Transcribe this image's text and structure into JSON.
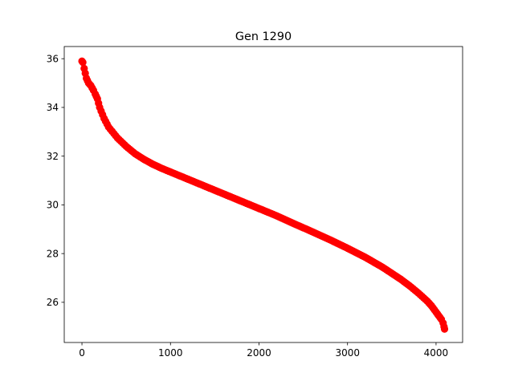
{
  "chart_data": {
    "type": "scatter",
    "title": "Gen 1290",
    "xlabel": "",
    "ylabel": "",
    "xlim": [
      -200,
      4300
    ],
    "ylim": [
      24.35,
      36.5
    ],
    "xticks": [
      0,
      1000,
      2000,
      3000,
      4000
    ],
    "yticks": [
      26,
      28,
      30,
      32,
      34,
      36
    ],
    "xtick_labels": [
      "0",
      "1000",
      "2000",
      "3000",
      "4000"
    ],
    "ytick_labels": [
      "26",
      "28",
      "30",
      "32",
      "34",
      "36"
    ],
    "grid": false,
    "legend": "none",
    "marker_color": "#ff0000",
    "series": [
      {
        "x": [
          0,
          10,
          25,
          50,
          75,
          100,
          130,
          150,
          175,
          200,
          250,
          300,
          400,
          500,
          600,
          700,
          800,
          900,
          1000,
          1200,
          1400,
          1600,
          1800,
          2000,
          2200,
          2400,
          2600,
          2800,
          3000,
          3200,
          3400,
          3600,
          3700,
          3800,
          3900,
          3950,
          4000,
          4030,
          4060,
          4080,
          4090,
          4096
        ],
        "y": [
          35.9,
          35.85,
          35.6,
          35.2,
          35.0,
          34.9,
          34.7,
          34.55,
          34.35,
          34.0,
          33.55,
          33.2,
          32.75,
          32.4,
          32.1,
          31.87,
          31.67,
          31.5,
          31.35,
          31.05,
          30.75,
          30.45,
          30.15,
          29.85,
          29.55,
          29.22,
          28.9,
          28.57,
          28.22,
          27.85,
          27.43,
          26.95,
          26.68,
          26.38,
          26.05,
          25.85,
          25.6,
          25.45,
          25.3,
          25.15,
          25.0,
          24.9
        ]
      }
    ]
  }
}
